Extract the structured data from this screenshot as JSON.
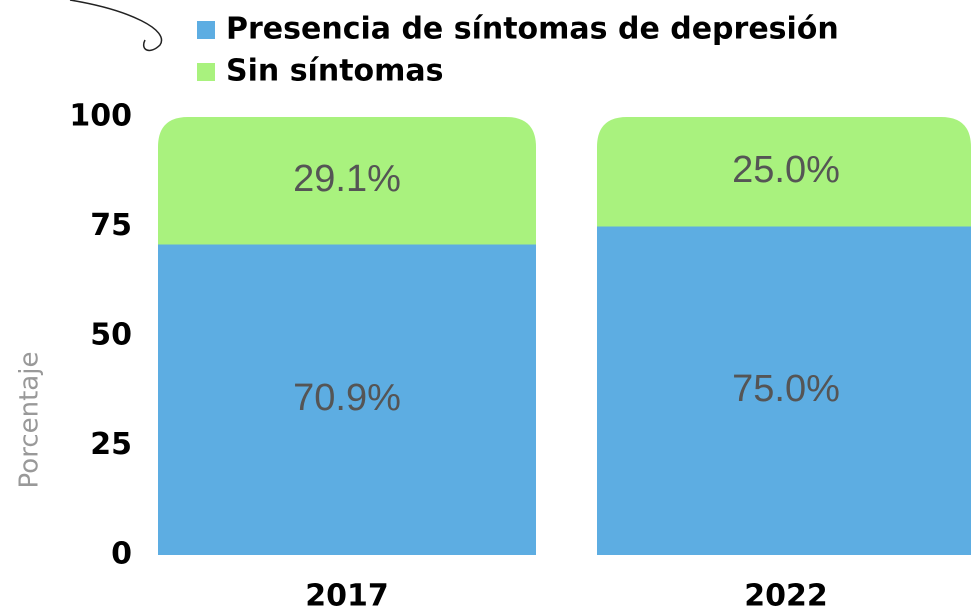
{
  "chart_data": {
    "type": "stacked_bar",
    "y_label": "Porcentaje",
    "categories": [
      "2017",
      "2022"
    ],
    "series": [
      {
        "name": "Presencia de síntomas de depresión",
        "color": "#5dade2",
        "values": [
          70.9,
          75.0
        ],
        "value_labels": [
          "70.9%",
          "75.0%"
        ]
      },
      {
        "name": "Sin síntomas",
        "color": "#a9f27e",
        "values": [
          29.1,
          25.0
        ],
        "value_labels": [
          "29.1%",
          "25.0%"
        ]
      }
    ],
    "ylim": [
      0,
      100
    ],
    "yticks": [
      0,
      25,
      50,
      75,
      100
    ]
  }
}
